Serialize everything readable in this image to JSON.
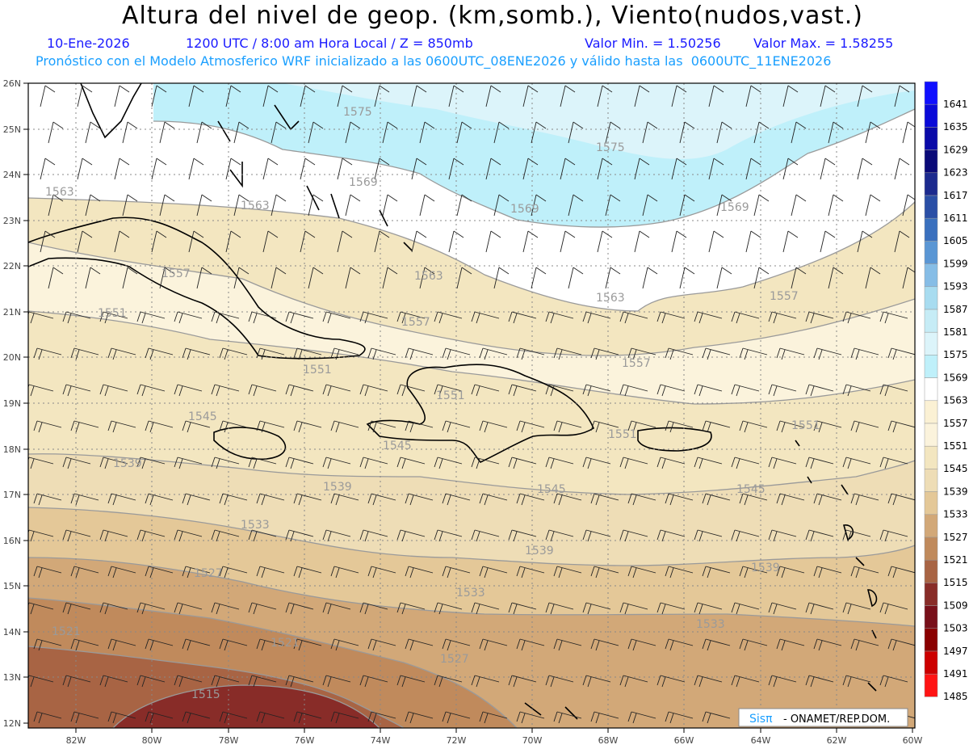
{
  "header": {
    "title": "Altura del nivel de geop. (km,somb.), Viento(nudos,vast.)",
    "date": "10-Ene-2026",
    "time": "1200 UTC / 8:00 am Hora Local / Z = 850mb",
    "min_label": "Valor Min. = 1.50256",
    "max_label": "Valor Max. = 1.58255",
    "forecast_line": "Pronóstico con el Modelo Atmosferico WRF inicializado a las 0600UTC_08ENE2026 y válido hasta las  0600UTC_11ENE2026"
  },
  "axes": {
    "lat_labels": [
      "26N",
      "25N",
      "24N",
      "23N",
      "22N",
      "21N",
      "20N",
      "19N",
      "18N",
      "17N",
      "16N",
      "15N",
      "14N",
      "13N",
      "12N"
    ],
    "lon_labels": [
      "82W",
      "80W",
      "78W",
      "76W",
      "74W",
      "72W",
      "70W",
      "68W",
      "66W",
      "64W",
      "62W",
      "60W"
    ]
  },
  "contour_labels": [
    "1575",
    "1575",
    "1569",
    "1569",
    "1569",
    "1563",
    "1563",
    "1563",
    "1563",
    "1557",
    "1557",
    "1557",
    "1557",
    "1551",
    "1551",
    "1551",
    "1551",
    "1551",
    "1545",
    "1545",
    "1545",
    "1545",
    "1539",
    "1539",
    "1539",
    "1539",
    "1533",
    "1533",
    "1533",
    "1527",
    "1527",
    "1521",
    "1521",
    "1515"
  ],
  "colorbar": {
    "levels": [
      "1641",
      "1635",
      "1629",
      "1623",
      "1617",
      "1611",
      "1605",
      "1599",
      "1593",
      "1587",
      "1581",
      "1575",
      "1569",
      "1563",
      "1557",
      "1551",
      "1545",
      "1539",
      "1533",
      "1527",
      "1521",
      "1515",
      "1509",
      "1503",
      "1497",
      "1491",
      "1485"
    ],
    "colors": [
      "#1010ff",
      "#0a0ad8",
      "#0a0aa8",
      "#0a0a78",
      "#1c2a8e",
      "#2a4fa6",
      "#3a70be",
      "#5a96d4",
      "#86bde6",
      "#a8dcf0",
      "#c6ecf6",
      "#dcf4fa",
      "#bff0fa",
      "#ffffff",
      "#fbf1d4",
      "#fbf3dc",
      "#f3e6c0",
      "#eeddb6",
      "#e4c898",
      "#d2a878",
      "#c08a5c",
      "#a86444",
      "#882c28",
      "#78101a",
      "#8a0000",
      "#cc0000",
      "#ff1414"
    ]
  },
  "credit": {
    "logo": "Sisπ",
    "text": "- ONAMET/REP.DOM."
  }
}
